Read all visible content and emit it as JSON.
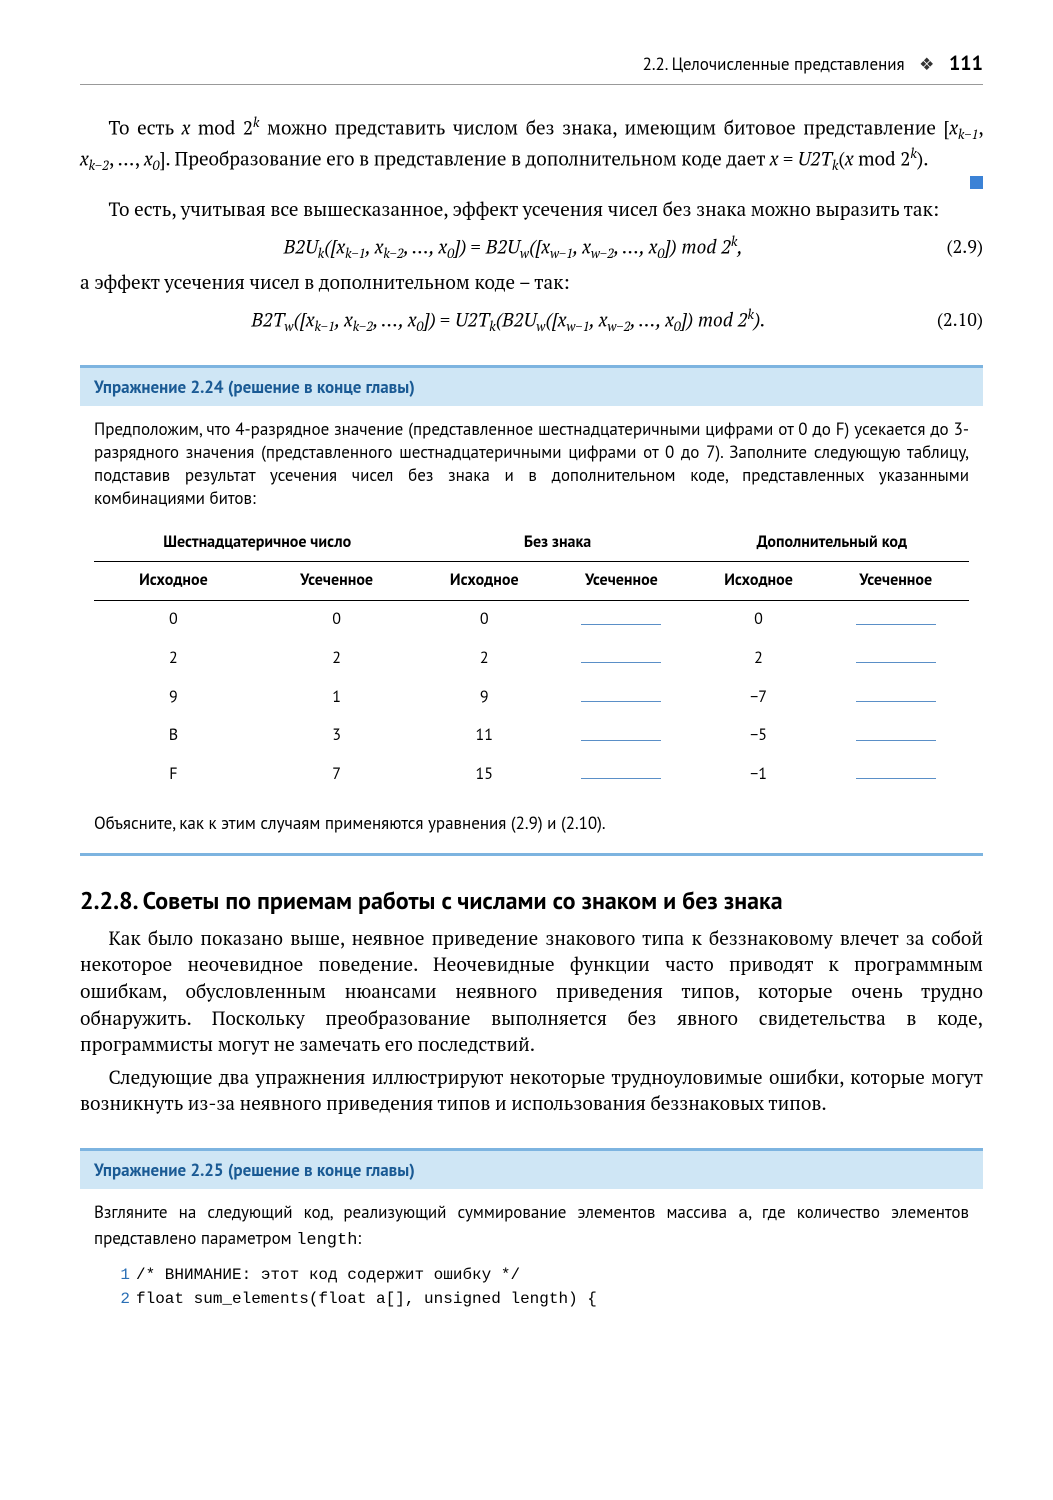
{
  "header": {
    "section": "2.2. Целочисленные представления",
    "page": "111"
  },
  "para1": "То есть x mod 2ᵏ можно представить числом без знака, имеющим битовое представление [x_{k−1}, x_{k−2}, …, x_0]. Преобразование его в представление в дополнительном коде дает x = U2T_k(x mod 2ᵏ).",
  "para2": "То есть, учитывая все вышесказанное, эффект усечения чисел без знака можно выразить так:",
  "eq1": {
    "text": "B2U_k([x_{k−1}, x_{k−2}, …, x_0]) = B2U_w([x_{w−1}, x_{w−2}, …, x_0]) mod 2ᵏ,",
    "num": "(2.9)"
  },
  "para3": "а эффект усечения чисел в дополнительном коде – так:",
  "eq2": {
    "text": "B2T_w([x_{k−1}, x_{k−2}, …, x_0]) = U2T_k(B2U_w([x_{w−1}, x_{w−2}, …, x_0]) mod 2ᵏ).",
    "num": "(2.10)"
  },
  "ex24": {
    "title": "Упражнение 2.24 (решение в конце главы)",
    "intro": "Предположим, что 4-разрядное значение (представленное шестнадцатеричными цифрами от 0 до F) усекается до 3-разрядного значения (представленного шестнадцатеричными цифрами от 0 до 7). Заполните следующую таблицу, подставив результат усечения чисел без знака и в дополнительном коде, представленных указанными комбинациями битов:",
    "table": {
      "group_headers": [
        "Шестнадцатеричное число",
        "Без знака",
        "Дополнительный код"
      ],
      "sub_headers": [
        "Исходное",
        "Усеченное",
        "Исходное",
        "Усеченное",
        "Исходное",
        "Усеченное"
      ],
      "rows": [
        {
          "hex_src": "0",
          "hex_trunc": "0",
          "u_src": "0",
          "t_src": "0"
        },
        {
          "hex_src": "2",
          "hex_trunc": "2",
          "u_src": "2",
          "t_src": "2"
        },
        {
          "hex_src": "9",
          "hex_trunc": "1",
          "u_src": "9",
          "t_src": "−7"
        },
        {
          "hex_src": "B",
          "hex_trunc": "3",
          "u_src": "11",
          "t_src": "−5"
        },
        {
          "hex_src": "F",
          "hex_trunc": "7",
          "u_src": "15",
          "t_src": "−1"
        }
      ]
    },
    "outro": "Объясните, как к этим случаям применяются уравнения (2.9) и (2.10)."
  },
  "section": {
    "title": "2.2.8. Советы по приемам работы с числами со знаком и без знака",
    "p1": "Как было показано выше, неявное приведение знакового типа к беззнаковому влечет за собой некоторое неочевидное поведение. Неочевидные функции часто приводят к программным ошибкам, обусловленным нюансами неявного приведения типов, которые очень трудно обнаружить. Поскольку преобразование выполняется без явного свидетельства в коде, программисты могут не замечать его последствий.",
    "p2": "Следующие два упражнения иллюстрируют некоторые трудноуловимые ошибки, которые могут возникнуть из-за неявного приведения типов и использования беззнаковых типов."
  },
  "ex25": {
    "title": "Упражнение 2.25 (решение в конце главы)",
    "intro_a": "Взгляните на следующий код, реализующий суммирование элементов массива ",
    "intro_code1": "a",
    "intro_b": ", где количество элементов представлено параметром ",
    "intro_code2": "length",
    "intro_c": ":",
    "code": [
      {
        "n": "1",
        "line": "/* ВНИМАНИЕ: этот код содержит ошибку */"
      },
      {
        "n": "2",
        "line": "float sum_elements(float a[], unsigned length) {"
      }
    ]
  },
  "colors": {
    "accent_blue": "#3b82d6",
    "box_border": "#7db4e0",
    "box_bg": "#cfe6f5",
    "box_title": "#1a5a94",
    "blank_underline": "#5a8fc7",
    "lineno": "#2a6fb5"
  }
}
